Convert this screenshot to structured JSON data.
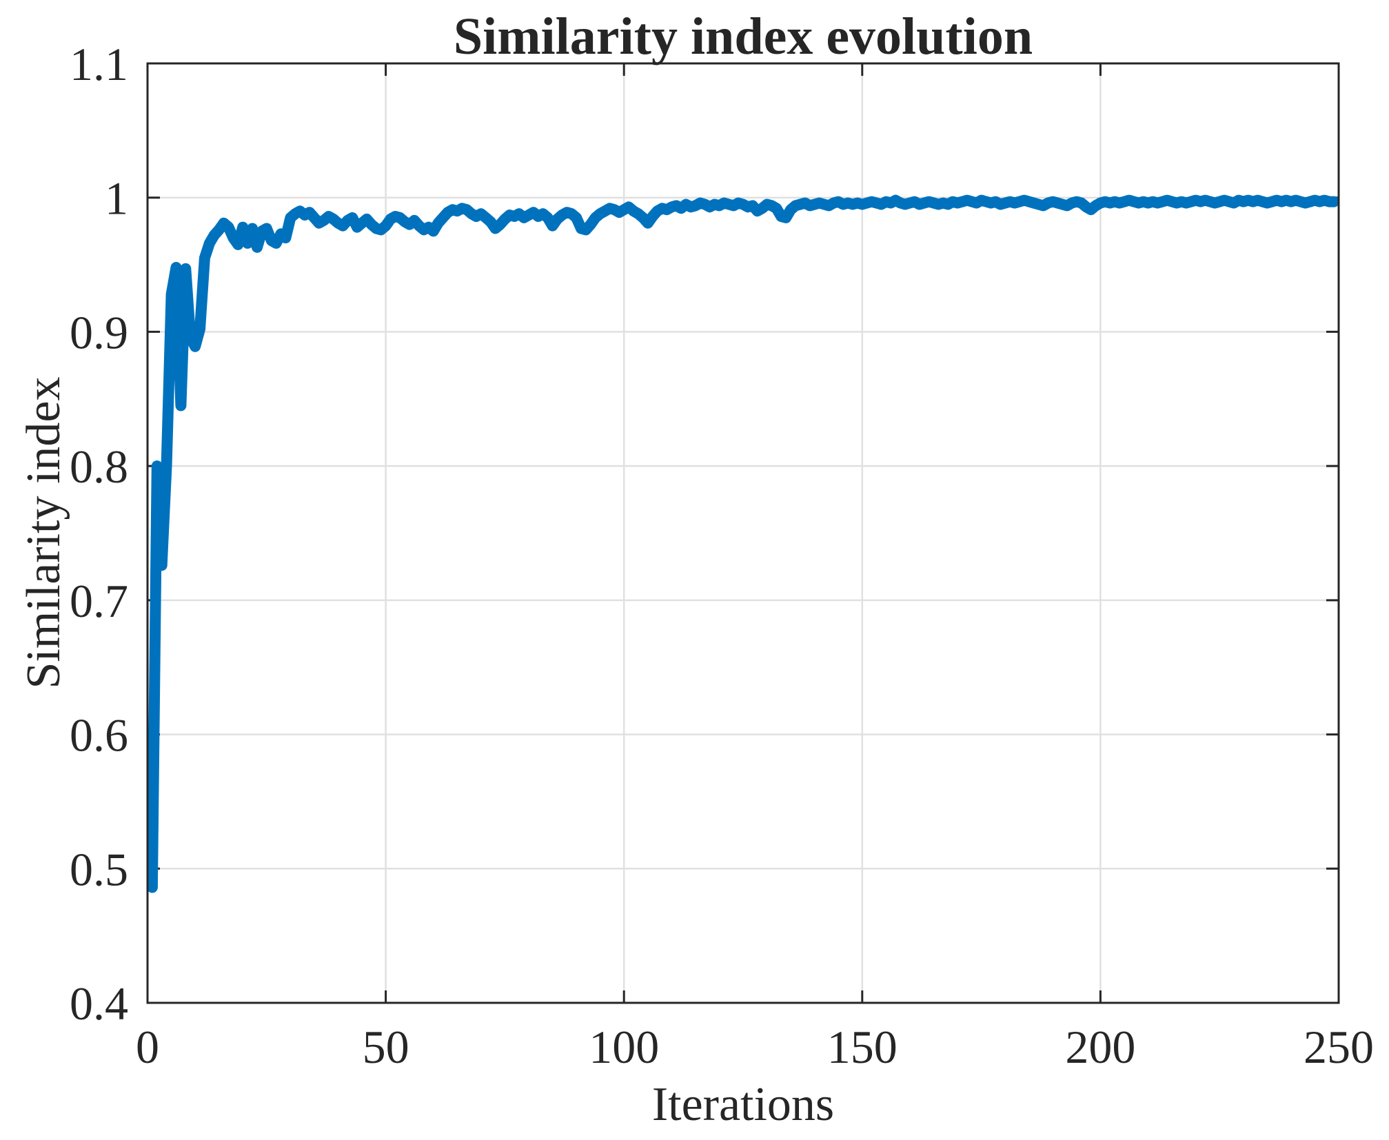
{
  "figure": {
    "background_color": "#ffffff",
    "axis_color": "#262626",
    "grid_color": "#e0e0e0"
  },
  "chart_data": {
    "type": "line",
    "title": "Similarity index evolution",
    "xlabel": "Iterations",
    "ylabel": "Similarity index",
    "xlim": [
      0,
      250
    ],
    "ylim": [
      0.4,
      1.1
    ],
    "grid": true,
    "legend": "none",
    "xtick_values": [
      0,
      50,
      100,
      150,
      200,
      250
    ],
    "xtick_labels": [
      "0",
      "50",
      "100",
      "150",
      "200",
      "250"
    ],
    "ytick_values": [
      0.4,
      0.5,
      0.6,
      0.7,
      0.8,
      0.9,
      1,
      1.1
    ],
    "ytick_labels": [
      "0.4",
      "0.5",
      "0.6",
      "0.7",
      "0.8",
      "0.9",
      "1",
      "1.1"
    ],
    "line_color": "#0072BD",
    "series": [
      {
        "name": "Similarity index",
        "x_first": 1,
        "x_step": 1,
        "y": [
          0.486,
          0.8,
          0.726,
          0.801,
          0.928,
          0.948,
          0.845,
          0.947,
          0.896,
          0.889,
          0.902,
          0.955,
          0.966,
          0.972,
          0.976,
          0.981,
          0.978,
          0.97,
          0.965,
          0.978,
          0.966,
          0.977,
          0.963,
          0.975,
          0.977,
          0.968,
          0.966,
          0.973,
          0.97,
          0.985,
          0.988,
          0.99,
          0.987,
          0.989,
          0.985,
          0.981,
          0.983,
          0.986,
          0.984,
          0.981,
          0.979,
          0.983,
          0.985,
          0.978,
          0.981,
          0.984,
          0.98,
          0.977,
          0.976,
          0.979,
          0.984,
          0.986,
          0.985,
          0.982,
          0.98,
          0.983,
          0.979,
          0.976,
          0.978,
          0.975,
          0.981,
          0.985,
          0.989,
          0.991,
          0.99,
          0.992,
          0.991,
          0.988,
          0.986,
          0.988,
          0.985,
          0.982,
          0.977,
          0.98,
          0.984,
          0.987,
          0.986,
          0.988,
          0.985,
          0.987,
          0.989,
          0.986,
          0.988,
          0.985,
          0.979,
          0.984,
          0.987,
          0.989,
          0.988,
          0.985,
          0.977,
          0.976,
          0.98,
          0.985,
          0.988,
          0.99,
          0.992,
          0.991,
          0.989,
          0.991,
          0.993,
          0.99,
          0.988,
          0.985,
          0.981,
          0.986,
          0.99,
          0.992,
          0.991,
          0.993,
          0.994,
          0.992,
          0.995,
          0.993,
          0.994,
          0.996,
          0.995,
          0.993,
          0.995,
          0.994,
          0.996,
          0.995,
          0.994,
          0.996,
          0.995,
          0.993,
          0.994,
          0.99,
          0.992,
          0.995,
          0.994,
          0.992,
          0.986,
          0.985,
          0.991,
          0.994,
          0.995,
          0.996,
          0.994,
          0.995,
          0.996,
          0.995,
          0.994,
          0.996,
          0.997,
          0.995,
          0.996,
          0.995,
          0.996,
          0.995,
          0.996,
          0.997,
          0.996,
          0.995,
          0.997,
          0.996,
          0.998,
          0.996,
          0.995,
          0.996,
          0.997,
          0.995,
          0.996,
          0.997,
          0.996,
          0.995,
          0.996,
          0.995,
          0.997,
          0.996,
          0.997,
          0.998,
          0.997,
          0.996,
          0.998,
          0.997,
          0.996,
          0.997,
          0.995,
          0.996,
          0.997,
          0.996,
          0.997,
          0.998,
          0.997,
          0.996,
          0.995,
          0.994,
          0.996,
          0.997,
          0.996,
          0.995,
          0.994,
          0.996,
          0.997,
          0.996,
          0.993,
          0.991,
          0.994,
          0.996,
          0.997,
          0.996,
          0.997,
          0.996,
          0.997,
          0.998,
          0.997,
          0.996,
          0.997,
          0.996,
          0.997,
          0.996,
          0.997,
          0.998,
          0.997,
          0.996,
          0.997,
          0.996,
          0.997,
          0.998,
          0.997,
          0.998,
          0.997,
          0.996,
          0.997,
          0.998,
          0.997,
          0.996,
          0.998,
          0.997,
          0.998,
          0.997,
          0.998,
          0.997,
          0.996,
          0.997,
          0.998,
          0.997,
          0.998,
          0.997,
          0.998,
          0.997,
          0.996,
          0.997,
          0.998,
          0.997,
          0.998,
          0.997,
          0.997
        ]
      }
    ]
  }
}
